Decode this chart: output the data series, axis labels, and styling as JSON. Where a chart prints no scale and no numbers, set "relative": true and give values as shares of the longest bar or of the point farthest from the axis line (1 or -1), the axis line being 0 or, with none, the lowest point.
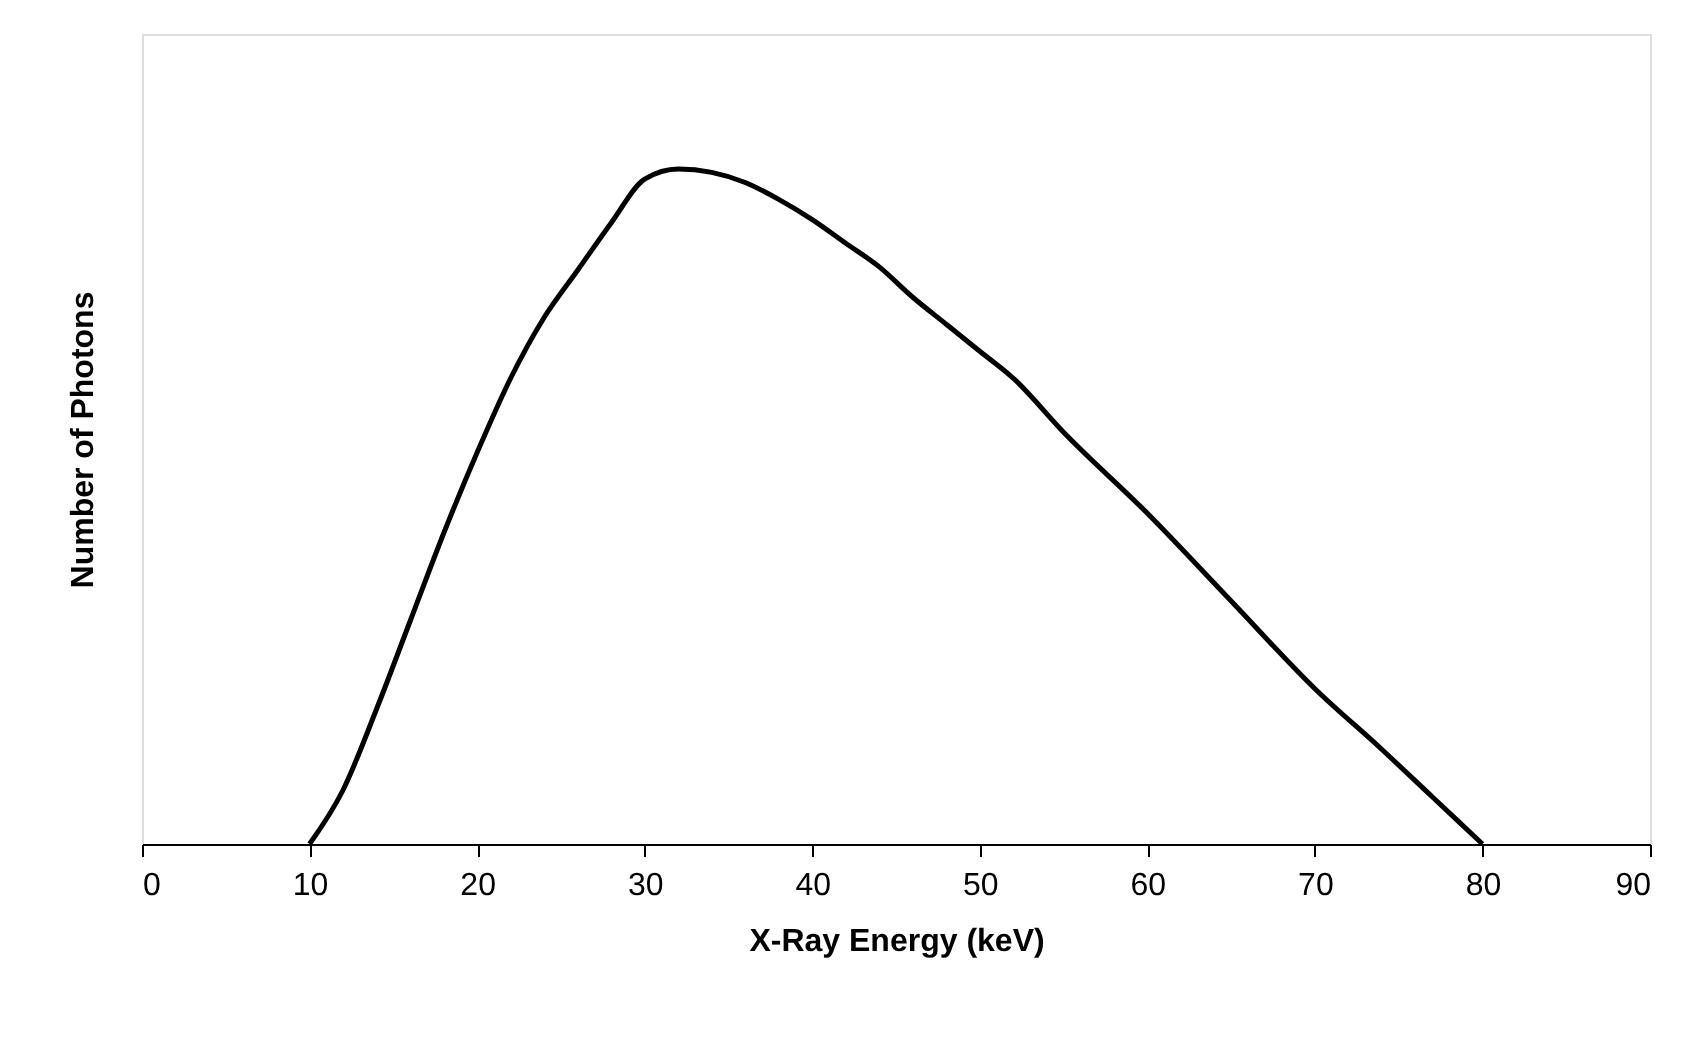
{
  "chart_data": {
    "type": "line",
    "xlabel": "X-Ray Energy (keV)",
    "ylabel": "Number of Photons",
    "relative": true,
    "xlim": [
      0,
      90
    ],
    "xticks": [
      0,
      10,
      20,
      30,
      40,
      50,
      60,
      70,
      80,
      90
    ],
    "grid": false,
    "marker": "none",
    "line_style": "solid",
    "x": [
      10,
      12,
      14,
      16,
      18,
      20,
      22,
      24,
      26,
      28,
      30,
      32,
      34,
      36,
      38,
      40,
      42,
      44,
      46,
      48,
      50,
      52,
      55,
      60,
      65,
      70,
      74,
      77,
      80
    ],
    "series": [
      {
        "color": "#000000",
        "values": [
          0,
          0.08,
          0.2,
          0.33,
          0.46,
          0.58,
          0.69,
          0.78,
          0.85,
          0.92,
          0.985,
          1,
          0.995,
          0.98,
          0.955,
          0.925,
          0.89,
          0.855,
          0.81,
          0.77,
          0.73,
          0.69,
          0.61,
          0.49,
          0.36,
          0.23,
          0.14,
          0.07,
          0
        ]
      }
    ]
  }
}
